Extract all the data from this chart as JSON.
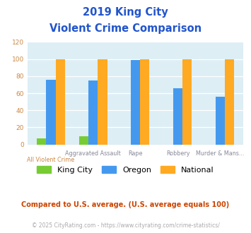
{
  "title_line1": "2019 King City",
  "title_line2": "Violent Crime Comparison",
  "categories": [
    "All Violent Crime",
    "Aggravated Assault",
    "Rape",
    "Robbery",
    "Murder & Mans..."
  ],
  "series": {
    "King City": [
      7,
      10,
      0,
      0,
      0
    ],
    "Oregon": [
      76,
      75,
      99,
      66,
      56
    ],
    "National": [
      100,
      100,
      100,
      100,
      100
    ]
  },
  "colors": {
    "King City": "#77cc33",
    "Oregon": "#4499ee",
    "National": "#ffaa22"
  },
  "ylim": [
    0,
    120
  ],
  "yticks": [
    0,
    20,
    40,
    60,
    80,
    100,
    120
  ],
  "plot_bg": "#ddeef5",
  "title_color": "#2255cc",
  "xlabel_top_color": "#888899",
  "xlabel_bot_color": "#cc8844",
  "ylabel_tick_color": "#cc8844",
  "footnote1": "Compared to U.S. average. (U.S. average equals 100)",
  "footnote2": "© 2025 CityRating.com - https://www.cityrating.com/crime-statistics/",
  "footnote1_color": "#cc4400",
  "footnote2_color": "#aaaaaa",
  "bar_width": 0.22
}
